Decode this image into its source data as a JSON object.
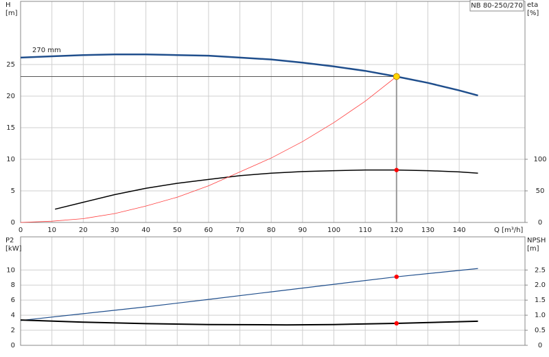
{
  "chart_data": [
    {
      "type": "line",
      "y_label": "H",
      "y_unit": "[m]",
      "y2_label": "eta",
      "y2_unit": "[%]",
      "x_label": "Q [m³/h]",
      "annotation": "270 mm",
      "pump_label": "NB 80-250/270",
      "xlim": [
        0,
        161
      ],
      "xticks": [
        0,
        10,
        20,
        30,
        40,
        50,
        60,
        70,
        80,
        90,
        100,
        110,
        120,
        130,
        140
      ],
      "ylim": [
        0,
        35
      ],
      "yticks": [
        0,
        5,
        10,
        15,
        20,
        25
      ],
      "y2lim": [
        0,
        350
      ],
      "y2ticks": [
        0,
        50,
        100
      ],
      "grid": true,
      "series": [
        {
          "color": "#1f4e8c",
          "width": 2.5,
          "x": [
            0,
            10,
            20,
            30,
            40,
            50,
            60,
            70,
            80,
            90,
            100,
            110,
            120,
            130,
            140,
            146
          ],
          "values": [
            26.1,
            26.3,
            26.5,
            26.6,
            26.6,
            26.5,
            26.4,
            26.1,
            25.8,
            25.3,
            24.7,
            24.0,
            23.1,
            22.1,
            20.9,
            20.1
          ]
        },
        {
          "color": "#000000",
          "width": 1.5,
          "axis": "y2",
          "x": [
            11,
            20,
            30,
            40,
            50,
            60,
            70,
            80,
            90,
            100,
            110,
            120,
            130,
            140,
            146
          ],
          "values": [
            21,
            32,
            44,
            54,
            62,
            68,
            74,
            78,
            80.5,
            82,
            83,
            83,
            82,
            80,
            78
          ]
        },
        {
          "color": "#ff3b3b",
          "width": 0.8,
          "x": [
            0,
            10,
            20,
            30,
            40,
            50,
            60,
            70,
            80,
            90,
            100,
            110,
            120
          ],
          "values": [
            0,
            0.2,
            0.6,
            1.4,
            2.6,
            4.0,
            5.8,
            8.0,
            10.2,
            12.8,
            15.8,
            19.2,
            23.1
          ]
        }
      ],
      "markers": [
        {
          "x": 120,
          "value": 23.1,
          "color": "#ffd700"
        },
        {
          "x": 120,
          "value": 83,
          "axis": "y2",
          "color": "#ff0000"
        }
      ]
    },
    {
      "type": "line",
      "y_label": "P2",
      "y_unit": "[kW]",
      "y2_label": "NPSH",
      "y2_unit": "[m]",
      "xlim": [
        0,
        161
      ],
      "ylim": [
        0,
        14.4
      ],
      "yticks": [
        0,
        2,
        4,
        6,
        8,
        10
      ],
      "y2lim": [
        0,
        3.6
      ],
      "y2ticks": [
        0,
        0.5,
        {
          "value": 1,
          "label": "1.0"
        },
        1.5,
        {
          "value": 2,
          "label": "2.0"
        },
        2.5
      ],
      "grid": true,
      "series": [
        {
          "color": "#1f4e8c",
          "width": 1.2,
          "x": [
            0,
            20,
            40,
            60,
            80,
            100,
            120,
            146
          ],
          "values": [
            3.3,
            4.2,
            5.1,
            6.1,
            7.1,
            8.1,
            9.1,
            10.2
          ]
        },
        {
          "color": "#000000",
          "width": 2,
          "axis": "y2",
          "x": [
            0,
            20,
            40,
            60,
            85,
            100,
            120,
            146
          ],
          "values": [
            0.84,
            0.77,
            0.72,
            0.69,
            0.68,
            0.69,
            0.73,
            0.8
          ]
        }
      ],
      "markers": [
        {
          "x": 120,
          "value": 9.1,
          "color": "#ff0000"
        },
        {
          "x": 120,
          "value": 0.73,
          "axis": "y2",
          "color": "#ff0000"
        }
      ]
    }
  ]
}
